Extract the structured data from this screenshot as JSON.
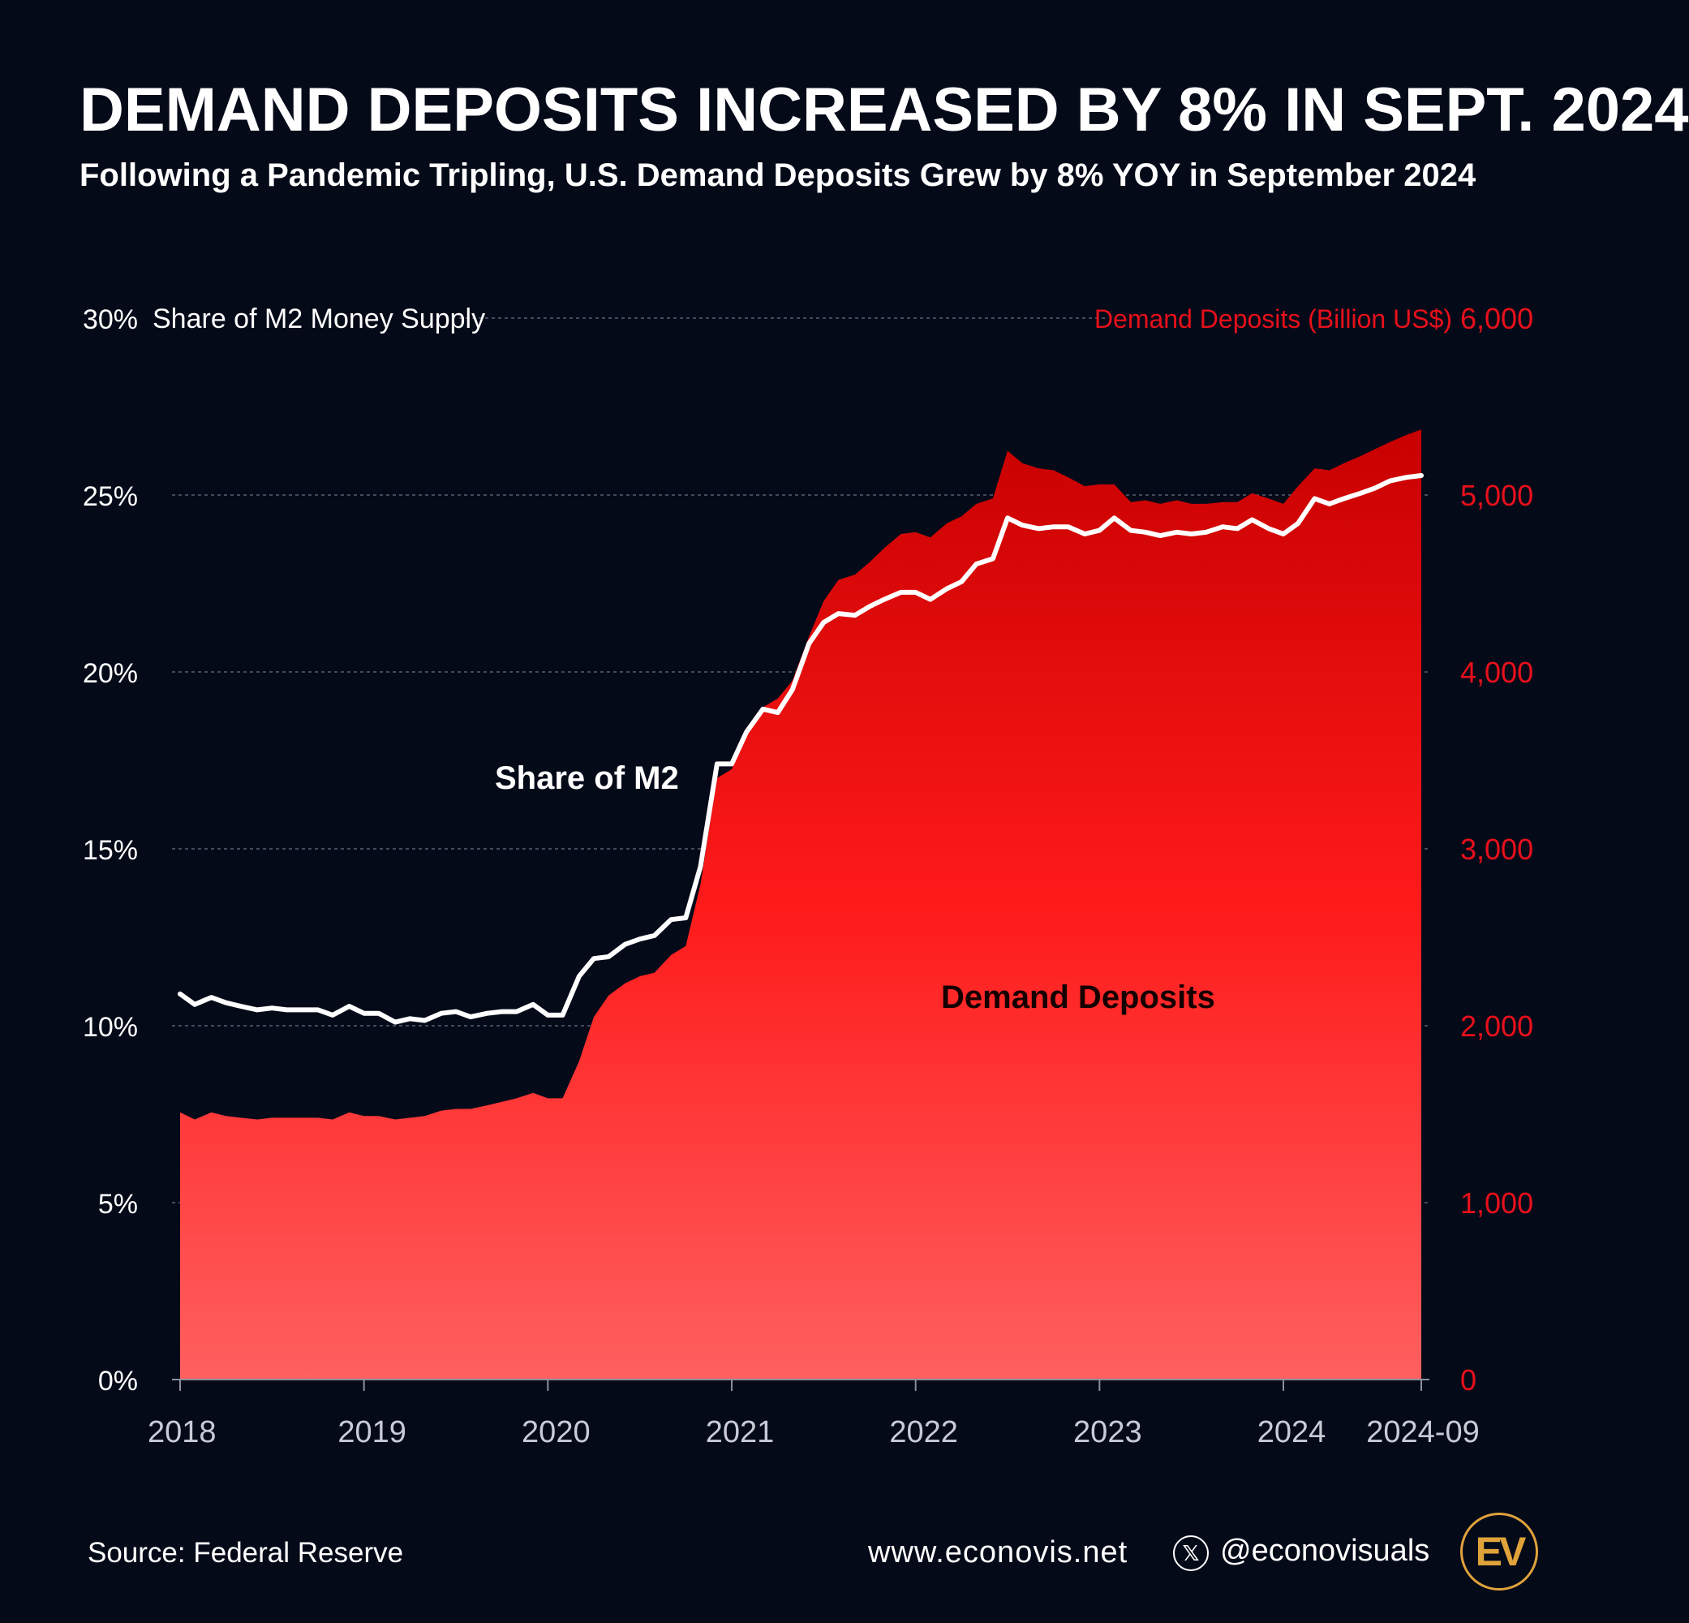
{
  "title": "DEMAND DEPOSITS INCREASED BY 8% IN SEPT. 2024",
  "subtitle": "Following a Pandemic Tripling, U.S. Demand Deposits Grew by 8% YOY in September 2024",
  "footer": {
    "source": "Source: Federal Reserve",
    "website": "www.econovis.net",
    "x_icon": "x-logo-icon",
    "handle": "@econovisuals",
    "logo_text": "EV"
  },
  "colors": {
    "background": "#050a19",
    "area_top": "#c80000",
    "area_mid": "#ff1a1a",
    "area_bottom": "#ff6060",
    "line": "#ffffff",
    "right_axis": "#e8101a",
    "logo": "#e0a33a"
  },
  "chart_data": {
    "type": "area",
    "title": "DEMAND DEPOSITS INCREASED BY 8% IN SEPT. 2024",
    "left_axis": {
      "label": "Share of M2 Money Supply",
      "range": [
        0,
        30
      ],
      "ticks": [
        0,
        5,
        10,
        15,
        20,
        25,
        30
      ],
      "tick_labels": [
        "0%",
        "5%",
        "10%",
        "15%",
        "20%",
        "25%",
        "30%"
      ]
    },
    "right_axis": {
      "label": "Demand Deposits (Billion US$)",
      "range": [
        0,
        6000
      ],
      "ticks": [
        0,
        1000,
        2000,
        3000,
        4000,
        5000,
        6000
      ],
      "tick_labels": [
        "0",
        "1,000",
        "2,000",
        "3,000",
        "4,000",
        "5,000",
        "6,000"
      ]
    },
    "x_axis": {
      "range": [
        2018.0,
        2024.75
      ],
      "ticks": [
        2018,
        2019,
        2020,
        2021,
        2022,
        2023,
        2024,
        2024.75
      ],
      "tick_labels": [
        "2018",
        "2019",
        "2020",
        "2021",
        "2022",
        "2023",
        "2024",
        "2024-09"
      ]
    },
    "grid": true,
    "series": [
      {
        "name": "Demand Deposits",
        "label": "Demand Deposits",
        "axis": "right",
        "kind": "area",
        "x": [
          2018.0,
          2018.08,
          2018.17,
          2018.25,
          2018.33,
          2018.42,
          2018.5,
          2018.58,
          2018.67,
          2018.75,
          2018.83,
          2018.92,
          2019.0,
          2019.08,
          2019.17,
          2019.25,
          2019.33,
          2019.42,
          2019.5,
          2019.58,
          2019.67,
          2019.75,
          2019.83,
          2019.92,
          2020.0,
          2020.08,
          2020.17,
          2020.25,
          2020.33,
          2020.42,
          2020.5,
          2020.58,
          2020.67,
          2020.75,
          2020.83,
          2020.92,
          2021.0,
          2021.08,
          2021.17,
          2021.25,
          2021.33,
          2021.42,
          2021.5,
          2021.58,
          2021.67,
          2021.75,
          2021.83,
          2021.92,
          2022.0,
          2022.08,
          2022.17,
          2022.25,
          2022.33,
          2022.42,
          2022.5,
          2022.58,
          2022.67,
          2022.75,
          2022.83,
          2022.92,
          2023.0,
          2023.08,
          2023.17,
          2023.25,
          2023.33,
          2023.42,
          2023.5,
          2023.58,
          2023.67,
          2023.75,
          2023.83,
          2023.92,
          2024.0,
          2024.08,
          2024.17,
          2024.25,
          2024.33,
          2024.42,
          2024.5,
          2024.58,
          2024.67,
          2024.75
        ],
        "values": [
          1510,
          1470,
          1510,
          1490,
          1480,
          1470,
          1480,
          1480,
          1480,
          1480,
          1470,
          1510,
          1490,
          1490,
          1470,
          1480,
          1490,
          1520,
          1530,
          1530,
          1550,
          1570,
          1590,
          1620,
          1590,
          1590,
          1800,
          2050,
          2170,
          2240,
          2280,
          2300,
          2400,
          2450,
          2800,
          3400,
          3450,
          3650,
          3800,
          3850,
          3950,
          4200,
          4400,
          4520,
          4550,
          4620,
          4700,
          4780,
          4790,
          4760,
          4840,
          4880,
          4950,
          4980,
          5250,
          5180,
          5150,
          5140,
          5100,
          5050,
          5060,
          5060,
          4960,
          4970,
          4950,
          4970,
          4950,
          4950,
          4960,
          4960,
          5010,
          4980,
          4950,
          5050,
          5150,
          5140,
          5180,
          5220,
          5260,
          5300,
          5340,
          5370
        ]
      },
      {
        "name": "Share of M2",
        "label": "Share of M2",
        "axis": "left",
        "kind": "line",
        "x": [
          2018.0,
          2018.08,
          2018.17,
          2018.25,
          2018.33,
          2018.42,
          2018.5,
          2018.58,
          2018.67,
          2018.75,
          2018.83,
          2018.92,
          2019.0,
          2019.08,
          2019.17,
          2019.25,
          2019.33,
          2019.42,
          2019.5,
          2019.58,
          2019.67,
          2019.75,
          2019.83,
          2019.92,
          2020.0,
          2020.08,
          2020.17,
          2020.25,
          2020.33,
          2020.42,
          2020.5,
          2020.58,
          2020.67,
          2020.75,
          2020.83,
          2020.92,
          2021.0,
          2021.08,
          2021.17,
          2021.25,
          2021.33,
          2021.42,
          2021.5,
          2021.58,
          2021.67,
          2021.75,
          2021.83,
          2021.92,
          2022.0,
          2022.08,
          2022.17,
          2022.25,
          2022.33,
          2022.42,
          2022.5,
          2022.58,
          2022.67,
          2022.75,
          2022.83,
          2022.92,
          2023.0,
          2023.08,
          2023.17,
          2023.25,
          2023.33,
          2023.42,
          2023.5,
          2023.58,
          2023.67,
          2023.75,
          2023.83,
          2023.92,
          2024.0,
          2024.08,
          2024.17,
          2024.25,
          2024.33,
          2024.42,
          2024.5,
          2024.58,
          2024.67,
          2024.75
        ],
        "values": [
          10.9,
          10.6,
          10.8,
          10.65,
          10.55,
          10.45,
          10.5,
          10.45,
          10.45,
          10.45,
          10.3,
          10.55,
          10.35,
          10.35,
          10.1,
          10.2,
          10.15,
          10.35,
          10.4,
          10.25,
          10.35,
          10.4,
          10.4,
          10.6,
          10.3,
          10.3,
          11.4,
          11.9,
          11.95,
          12.3,
          12.45,
          12.55,
          13.0,
          13.05,
          14.5,
          17.4,
          17.4,
          18.3,
          18.95,
          18.85,
          19.5,
          20.8,
          21.4,
          21.65,
          21.6,
          21.85,
          22.05,
          22.25,
          22.25,
          22.05,
          22.35,
          22.55,
          23.05,
          23.2,
          24.35,
          24.15,
          24.05,
          24.1,
          24.1,
          23.9,
          24.0,
          24.35,
          24.0,
          23.95,
          23.85,
          23.95,
          23.9,
          23.95,
          24.1,
          24.05,
          24.3,
          24.05,
          23.9,
          24.2,
          24.9,
          24.75,
          24.9,
          25.05,
          25.2,
          25.4,
          25.5,
          25.55
        ]
      }
    ]
  }
}
